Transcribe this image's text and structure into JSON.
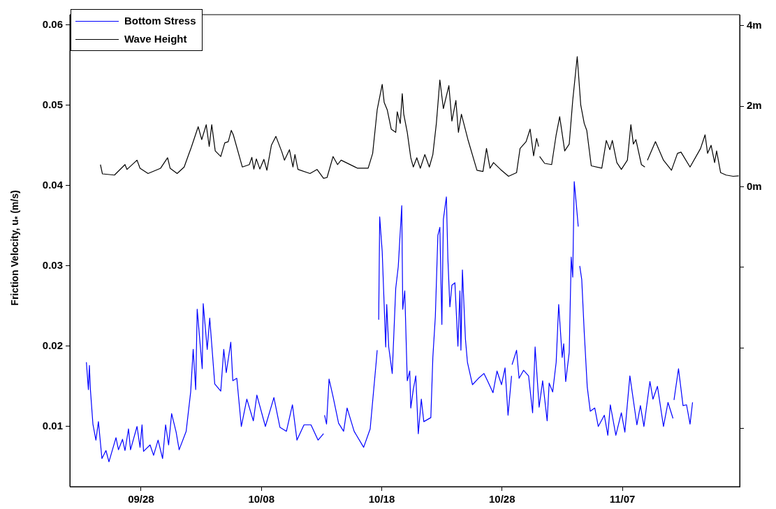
{
  "chart_data": {
    "type": "line",
    "ylabel": "Friction Velocity, u$_{*}$ (m/s)",
    "xlim": [
      "--09-22T02:00",
      "--11-16T18:00"
    ],
    "xticks": [
      {
        "value": "--09-28",
        "label": "09/28"
      },
      {
        "value": "--10-08",
        "label": "10/08"
      },
      {
        "value": "--10-18",
        "label": "10/18"
      },
      {
        "value": "--10-28",
        "label": "10/28"
      },
      {
        "value": "--11-07",
        "label": "11/07"
      }
    ],
    "ylim": [
      0.0025,
      0.0613
    ],
    "yticks": [
      0.01,
      0.02,
      0.03,
      0.04,
      0.05,
      0.06
    ],
    "y2lim": [
      -7.44,
      4.27
    ],
    "y2ticks": [
      {
        "value": -6,
        "label": null
      },
      {
        "value": -4,
        "label": null
      },
      {
        "value": -2,
        "label": null
      },
      {
        "value": 0,
        "label": "0m"
      },
      {
        "value": 2,
        "label": "2m"
      },
      {
        "value": 4,
        "label": "4m"
      }
    ],
    "grid": false,
    "legend": "top left",
    "series": [
      {
        "name": "Bottom Stress",
        "color": "#0000ff",
        "x": [
          "--09-23T11:00",
          "--09-23T15:00",
          "--09-23T17:00",
          "--09-23T19:00",
          "--09-24T00:00",
          "--09-24T06:00",
          "--09-24T11:00",
          "--09-24T18:00",
          "--09-25T02:00",
          "--09-25T08:00",
          "--09-25T22:00",
          "--09-26T03:00",
          "--09-26T11:00",
          "--09-26T16:00",
          "--09-26T23:00",
          "--09-27T03:00",
          "--09-27T16:00",
          "--09-27T22:00",
          "--09-28T02:00",
          "--09-28T05:00",
          "--09-28T18:00",
          "--09-29T01:00",
          "--09-29T10:00",
          "--09-29T19:00",
          "--09-30T01:00",
          "--09-30T07:00",
          "--09-30T13:00",
          "--09-30T22:00",
          "--10-01T04:00",
          "--10-01T18:00",
          "--10-02T03:00",
          "--10-02T08:00",
          "--10-02T13:00",
          "--10-02T16:00",
          "--10-03T02:00",
          "--10-03T04:00",
          "--10-03T12:00",
          "--10-03T17:00",
          "--10-04T03:00",
          "--10-04T15:00",
          "--10-04T21:00",
          "--10-05T02:00",
          "--10-05T11:00",
          "--10-05T15:00",
          "--10-05T23:00",
          "--10-06T08:00",
          "--10-06T19:00",
          "--10-07T08:00",
          "--10-07T15:00",
          "--10-08T08:00",
          "--10-09T01:00",
          "--10-09T13:00",
          "--10-10T02:00",
          "--10-10T14:00",
          "--10-10T23:00",
          "--10-11T13:00",
          "--10-12T03:00",
          "--10-12T17:00",
          "--10-13T04:00",
          "--10-13T05:00",
          "--10-13T06:00",
          "--10-13T10:00",
          "--10-13T15:00",
          "--10-13T23:00",
          "--10-14T10:00",
          "--10-14T20:00",
          "--10-15T03:00",
          "--10-15T17:00",
          "--10-16T12:00",
          "--10-17T01:00",
          "--10-17T13:00",
          "--10-17T15:00",
          "--10-17T16:00",
          "--10-17T18:00",
          "--10-17T20:00",
          "--10-18T01:00",
          "--10-18T08:00",
          "--10-18T10:00",
          "--10-18T14:00",
          "--10-18T21:00",
          "--10-19T04:00",
          "--10-19T09:00",
          "--10-19T16:00",
          "--10-19T18:00",
          "--10-19T22:00",
          "--10-20T03:00",
          "--10-20T08:00",
          "--10-20T10:00",
          "--10-20T15:00",
          "--10-20T20:00",
          "--10-21T01:00",
          "--10-21T07:00",
          "--10-21T12:00",
          "--10-22T02:00",
          "--10-22T06:00",
          "--10-22T11:00",
          "--10-22T16:00",
          "--10-22T20:00",
          "--10-23T00:00",
          "--10-23T03:00",
          "--10-23T09:00",
          "--10-23T12:00",
          "--10-23T16:00",
          "--10-23T20:00",
          "--10-24T02:00",
          "--10-24T08:00",
          "--10-24T12:00",
          "--10-24T14:00",
          "--10-24T17:00",
          "--10-24T23:00",
          "--10-25T03:00",
          "--10-25T13:00",
          "--10-26T01:00",
          "--10-26T12:00",
          "--10-26T19:00",
          "--10-27T06:00",
          "--10-27T14:00",
          "--10-27T23:00",
          "--10-28T06:00",
          "--10-28T12:00",
          "--10-28T19:00",
          "--10-28T19:30",
          "--10-28T20:00",
          "--10-29T05:00",
          "--10-29T10:00",
          "--10-29T19:00",
          "--10-30T05:00",
          "--10-30T13:00",
          "--10-30T18:00",
          "--10-31T02:00",
          "--10-31T09:00",
          "--10-31T18:00",
          "--10-31T22:00",
          "--11-01T05:00",
          "--11-01T12:00",
          "--11-01T17:00",
          "--11-02T00:00",
          "--11-02T03:00",
          "--11-02T07:00",
          "--11-02T14:00",
          "--11-02T18:00",
          "--11-02T21:00",
          "--11-03T00:00",
          "--11-03T04:00",
          "--11-03T08:00",
          "--11-03T09:00",
          "--11-03T11:00",
          "--11-03T15:00",
          "--11-03T20:00",
          "--11-04T02:00",
          "--11-04T08:00",
          "--11-04T17:00",
          "--11-05T00:00",
          "--11-05T12:00",
          "--11-05T19:00",
          "--11-06T00:00",
          "--11-06T11:00",
          "--11-06T22:00",
          "--11-07T05:00",
          "--11-07T15:00",
          "--11-08T05:00",
          "--11-08T12:00",
          "--11-08T19:00",
          "--11-09T07:00",
          "--11-09T13:00",
          "--11-09T22:00",
          "--11-10T10:00",
          "--11-10T19:00",
          "--11-11T05:00",
          "--11-11T06:00",
          "--11-11T07:00",
          "--11-11T16:00",
          "--11-12T01:00",
          "--11-12T08:00",
          "--11-12T15:00",
          "--11-12T20:00"
        ],
        "values": [
          0.018,
          0.0146,
          0.0176,
          0.0146,
          0.0103,
          0.0083,
          0.0106,
          0.006,
          0.007,
          0.0056,
          0.0086,
          0.0071,
          0.0084,
          0.007,
          0.0097,
          0.0071,
          0.01,
          0.0074,
          0.0102,
          0.0069,
          0.0077,
          0.0064,
          0.0083,
          0.006,
          0.0102,
          0.0077,
          0.0116,
          0.0093,
          0.0071,
          0.0094,
          0.0143,
          0.0196,
          0.0146,
          0.0246,
          0.0172,
          0.0253,
          0.0196,
          0.0235,
          0.0153,
          0.0144,
          0.0196,
          0.0167,
          0.0205,
          0.0157,
          0.016,
          0.01,
          0.0134,
          0.0107,
          0.0139,
          0.01,
          0.0136,
          0.0099,
          0.0094,
          0.0127,
          0.0083,
          0.0102,
          0.0102,
          0.0083,
          0.0091,
          null,
          0.0114,
          0.0103,
          0.0159,
          0.0137,
          0.0104,
          0.0094,
          0.0123,
          0.0094,
          0.0074,
          0.0097,
          0.018,
          0.0195,
          null,
          0.0233,
          0.0361,
          0.0318,
          0.0199,
          0.0252,
          0.0199,
          0.0166,
          0.0272,
          0.0299,
          0.0375,
          0.0246,
          0.0269,
          0.0157,
          0.0169,
          0.0123,
          0.0146,
          0.0163,
          0.0091,
          0.0134,
          0.0106,
          0.0111,
          0.0186,
          0.0237,
          0.0338,
          0.0348,
          0.0227,
          0.0358,
          0.0386,
          0.0309,
          0.0249,
          0.0276,
          0.0279,
          0.02,
          0.0269,
          0.0195,
          0.0295,
          0.0209,
          0.018,
          0.0152,
          0.016,
          0.0166,
          0.0157,
          0.0142,
          0.0169,
          0.0152,
          0.0173,
          0.0114,
          0.0163,
          null,
          0.0177,
          0.0195,
          0.016,
          0.017,
          0.0163,
          0.0117,
          0.0199,
          0.0124,
          0.0157,
          0.0107,
          0.0154,
          0.0143,
          0.018,
          0.0252,
          0.0186,
          0.0203,
          0.0156,
          0.0192,
          0.0311,
          0.0286,
          0.0405,
          0.0378,
          0.0349,
          null,
          0.03,
          0.0283,
          0.0217,
          0.0149,
          0.0119,
          0.0123,
          0.01,
          0.0114,
          0.0089,
          0.0127,
          0.0089,
          0.0117,
          0.0093,
          0.0163,
          0.0102,
          0.0126,
          0.01,
          0.0156,
          0.0134,
          0.015,
          0.01,
          0.013,
          0.011,
          null,
          0.0133,
          0.0172,
          0.0126,
          0.0127,
          0.0103,
          0.013
        ]
      },
      {
        "name": "Wave Height",
        "color": "#000000",
        "axis": "y2",
        "x": [
          "--09-24T15:00",
          "--09-24T19:00",
          "--09-25T19:00",
          "--09-26T16:00",
          "--09-26T20:00",
          "--09-27T16:00",
          "--09-27T22:00",
          "--09-28T14:00",
          "--09-29T15:00",
          "--09-30T05:00",
          "--09-30T10:00",
          "--10-01T00:00",
          "--10-01T14:00",
          "--10-01T23:00",
          "--10-02T04:00",
          "--10-02T18:00",
          "--10-03T01:00",
          "--10-03T10:00",
          "--10-03T16:00",
          "--10-03T21:00",
          "--10-04T04:00",
          "--10-04T15:00",
          "--10-04T23:00",
          "--10-05T06:00",
          "--10-05T12:00",
          "--10-05T16:00",
          "--10-06T10:00",
          "--10-07T00:00",
          "--10-07T05:00",
          "--10-07T09:00",
          "--10-07T14:00",
          "--10-07T21:00",
          "--10-08T05:00",
          "--10-08T11:00",
          "--10-08T20:00",
          "--10-09T05:00",
          "--10-09T17:00",
          "--10-09T22:00",
          "--10-10T08:00",
          "--10-10T15:00",
          "--10-10T19:00",
          "--10-10T23:00",
          "--10-11T01:00",
          "--10-12T01:00",
          "--10-12T15:00",
          "--10-13T04:00",
          "--10-13T11:00",
          "--10-13T23:00",
          "--10-14T08:00",
          "--10-14T15:00",
          "--10-16T00:00",
          "--10-16T21:00",
          "--10-17T06:00",
          "--10-17T15:00",
          "--10-18T01:00",
          "--10-18T05:00",
          "--10-18T11:00",
          "--10-18T19:00",
          "--10-19T04:00",
          "--10-19T07:00",
          "--10-19T13:00",
          "--10-19T17:00",
          "--10-19T20:00",
          "--10-20T03:00",
          "--10-20T10:00",
          "--10-20T15:00",
          "--10-20T22:00",
          "--10-21T05:00",
          "--10-21T14:00",
          "--10-21T23:00",
          "--10-22T06:00",
          "--10-22T13:00",
          "--10-22T20:00",
          "--10-23T03:00",
          "--10-23T14:00",
          "--10-23T20:00",
          "--10-24T04:00",
          "--10-24T09:00",
          "--10-24T15:00",
          "--10-25T04:00",
          "--10-25T22:00",
          "--10-26T10:00",
          "--10-26T17:00",
          "--10-27T00:00",
          "--10-27T07:00",
          "--10-27T21:00",
          "--10-28T13:00",
          "--10-29T05:00",
          "--10-29T12:00",
          "--10-30T00:00",
          "--10-30T08:00",
          "--10-30T15:00",
          "--10-30T21:00",
          "--10-31T01:00",
          "--10-31T02:00",
          "--10-31T03:00",
          "--10-31T13:00",
          "--11-01T03:00",
          "--11-01T12:00",
          "--11-01T19:00",
          "--11-02T05:00",
          "--11-02T14:00",
          "--11-02T21:00",
          "--11-03T06:00",
          "--11-03T13:00",
          "--11-03T20:00",
          "--11-04T01:00",
          "--11-04T10:00",
          "--11-05T07:00",
          "--11-05T16:00",
          "--11-05T23:00",
          "--11-06T04:00",
          "--11-06T13:00",
          "--11-06T22:00",
          "--11-07T10:00",
          "--11-07T17:00",
          "--11-07T22:00",
          "--11-08T03:00",
          "--11-08T14:00",
          "--11-08T21:00",
          "--11-08T23:00",
          "--11-09T02:00",
          "--11-09T18:00",
          "--11-10T10:00",
          "--11-11T02:00",
          "--11-11T14:00",
          "--11-11T21:00",
          "--11-12T15:00",
          "--11-13T12:00",
          "--11-13T21:00",
          "--11-14T02:00",
          "--11-14T09:00",
          "--11-14T16:00",
          "--11-14T20:00",
          "--11-15T04:00",
          "--11-15T15:00",
          "--11-16T05:00",
          "--11-16T16:00"
        ],
        "values": [
          0.55,
          0.32,
          0.29,
          0.55,
          0.43,
          0.66,
          0.46,
          0.33,
          0.46,
          0.72,
          0.46,
          0.33,
          0.49,
          0.8,
          0.97,
          1.49,
          1.17,
          1.54,
          1.0,
          1.54,
          0.89,
          0.75,
          1.09,
          1.12,
          1.4,
          1.29,
          0.49,
          0.55,
          0.73,
          0.44,
          0.69,
          0.44,
          0.68,
          0.41,
          1.03,
          1.25,
          0.86,
          0.66,
          0.92,
          0.49,
          0.8,
          0.55,
          0.43,
          0.33,
          0.43,
          0.21,
          0.23,
          0.75,
          0.55,
          0.66,
          0.46,
          0.46,
          0.83,
          1.91,
          2.54,
          2.09,
          1.91,
          1.43,
          1.35,
          1.86,
          1.57,
          2.31,
          1.8,
          1.35,
          0.72,
          0.49,
          0.72,
          0.46,
          0.8,
          0.49,
          0.8,
          1.57,
          2.65,
          1.94,
          2.51,
          1.63,
          2.14,
          1.35,
          1.8,
          1.17,
          0.41,
          0.38,
          0.95,
          0.46,
          0.6,
          0.43,
          0.26,
          0.35,
          0.95,
          1.12,
          1.43,
          0.77,
          1.2,
          1.0,
          null,
          0.75,
          0.58,
          0.55,
          1.29,
          1.74,
          0.89,
          1.06,
          2.14,
          3.23,
          2.03,
          1.57,
          1.4,
          0.52,
          0.46,
          1.15,
          0.92,
          1.15,
          0.6,
          0.43,
          0.66,
          1.54,
          1.06,
          1.17,
          0.55,
          0.49,
          null,
          0.66,
          1.12,
          0.66,
          0.41,
          0.83,
          0.86,
          0.49,
          0.95,
          1.29,
          0.83,
          1.03,
          0.6,
          0.89,
          0.35,
          0.29,
          0.26,
          0.27
        ]
      }
    ]
  }
}
